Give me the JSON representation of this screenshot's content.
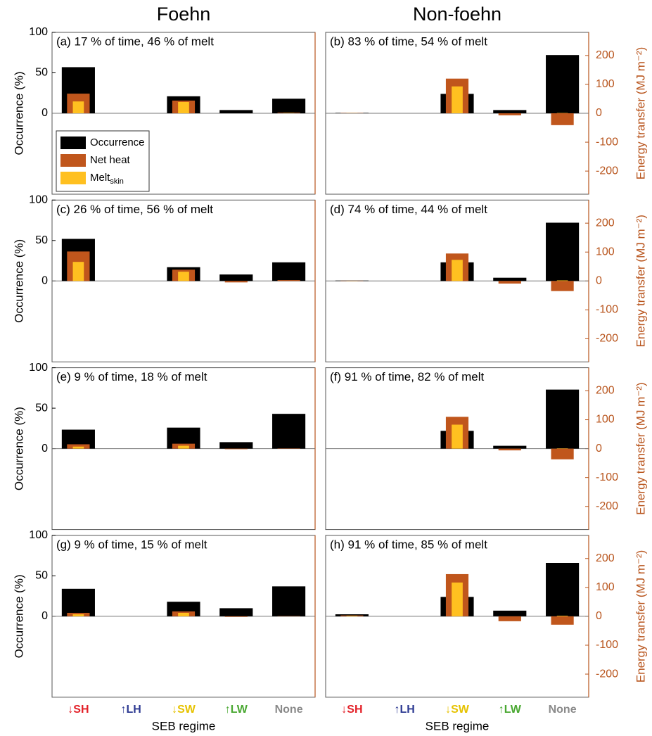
{
  "chart_data": [
    {
      "type": "bar",
      "title": "Foehn",
      "annotation": "(a) 17 % of time, 46 % of melt",
      "categories": [
        null,
        null,
        null,
        null,
        null
      ],
      "ylabel": "Occurrence (%)",
      "ylim": [
        -100,
        100
      ],
      "yticks": [
        0,
        50,
        100
      ],
      "y2lim": [
        -280,
        280
      ],
      "legend": "lower left",
      "series": [
        {
          "name": "Occurrence",
          "color": "#000000",
          "values": [
            57,
            0,
            21,
            4,
            18
          ]
        },
        {
          "name": "Net heat",
          "color": "#c0561c",
          "axis": "y2",
          "values": [
            68,
            0,
            44,
            0,
            2
          ]
        },
        {
          "name": "Melt",
          "name_subscript": "skin",
          "color": "#ffc020",
          "axis": "y2",
          "values": [
            41,
            0,
            39,
            0,
            1
          ]
        }
      ]
    },
    {
      "type": "bar",
      "title": "Non-foehn",
      "annotation": "(b) 83 % of time, 54 % of melt",
      "categories": [
        null,
        null,
        null,
        null,
        null
      ],
      "y2label": "Energy transfer (MJ m⁻²)",
      "ylim": [
        -100,
        100
      ],
      "y2lim": [
        -280,
        280
      ],
      "y2ticks": [
        -200,
        -100,
        0,
        100,
        200
      ],
      "series": [
        {
          "name": "Occurrence",
          "color": "#000000",
          "values": [
            0.5,
            0,
            24,
            4,
            72
          ]
        },
        {
          "name": "Net heat",
          "color": "#c0561c",
          "axis": "y2",
          "values": [
            1,
            0,
            120,
            -7,
            -41
          ]
        },
        {
          "name": "Melt",
          "color": "#ffc020",
          "axis": "y2",
          "values": [
            0.5,
            0,
            93,
            0,
            1
          ]
        }
      ]
    },
    {
      "type": "bar",
      "annotation": "(c) 26 % of time, 56 % of melt",
      "categories": [
        null,
        null,
        null,
        null,
        null
      ],
      "ylabel": "Occurrence (%)",
      "ylim": [
        -100,
        100
      ],
      "yticks": [
        0,
        50,
        100
      ],
      "y2lim": [
        -280,
        280
      ],
      "series": [
        {
          "name": "Occurrence",
          "color": "#000000",
          "values": [
            52,
            0,
            17,
            8,
            23
          ]
        },
        {
          "name": "Net heat",
          "color": "#c0561c",
          "axis": "y2",
          "values": [
            102,
            0,
            39,
            -5,
            3
          ]
        },
        {
          "name": "Melt",
          "color": "#ffc020",
          "axis": "y2",
          "values": [
            66,
            0,
            32,
            0,
            0
          ]
        }
      ]
    },
    {
      "type": "bar",
      "annotation": "(d) 74 % of time, 44 % of melt",
      "categories": [
        null,
        null,
        null,
        null,
        null
      ],
      "y2label": "Energy transfer (MJ m⁻²)",
      "ylim": [
        -100,
        100
      ],
      "y2lim": [
        -280,
        280
      ],
      "y2ticks": [
        -200,
        -100,
        0,
        100,
        200
      ],
      "series": [
        {
          "name": "Occurrence",
          "color": "#000000",
          "values": [
            0.5,
            0,
            23,
            4,
            72
          ]
        },
        {
          "name": "Net heat",
          "color": "#c0561c",
          "axis": "y2",
          "values": [
            1,
            0,
            95,
            -9,
            -35
          ]
        },
        {
          "name": "Melt",
          "color": "#ffc020",
          "axis": "y2",
          "values": [
            0.5,
            0,
            73,
            0,
            2
          ]
        }
      ]
    },
    {
      "type": "bar",
      "annotation": "(e) 9 % of time, 18 % of melt",
      "categories": [
        null,
        null,
        null,
        null,
        null
      ],
      "ylabel": "Occurrence (%)",
      "ylim": [
        -100,
        100
      ],
      "yticks": [
        0,
        50,
        100
      ],
      "y2lim": [
        -280,
        280
      ],
      "series": [
        {
          "name": "Occurrence",
          "color": "#000000",
          "values": [
            23.5,
            0,
            26,
            8,
            43
          ]
        },
        {
          "name": "Net heat",
          "color": "#c0561c",
          "axis": "y2",
          "values": [
            15,
            0,
            17,
            -2,
            1
          ]
        },
        {
          "name": "Melt",
          "color": "#ffc020",
          "axis": "y2",
          "values": [
            7,
            0,
            10,
            0,
            0
          ]
        }
      ]
    },
    {
      "type": "bar",
      "annotation": "(f) 91 % of time, 82 % of melt",
      "categories": [
        null,
        null,
        null,
        null,
        null
      ],
      "y2label": "Energy transfer (MJ m⁻²)",
      "ylim": [
        -100,
        100
      ],
      "y2lim": [
        -280,
        280
      ],
      "y2ticks": [
        -200,
        -100,
        0,
        100,
        200
      ],
      "series": [
        {
          "name": "Occurrence",
          "color": "#000000",
          "values": [
            0,
            0,
            22,
            3.5,
            73
          ]
        },
        {
          "name": "Net heat",
          "color": "#c0561c",
          "axis": "y2",
          "values": [
            0,
            0,
            110,
            -6,
            -37
          ]
        },
        {
          "name": "Melt",
          "color": "#ffc020",
          "axis": "y2",
          "values": [
            0,
            0,
            83,
            0,
            1
          ]
        }
      ]
    },
    {
      "type": "bar",
      "annotation": "(g) 9 % of time, 15 % of melt",
      "categories": [
        "↓SH",
        "↑LH",
        "↓SW",
        "↑LW",
        "None"
      ],
      "category_colors": [
        "#e32028",
        "#2e3b93",
        "#e6c200",
        "#4aa832",
        "#8a8a8a"
      ],
      "xlabel": "SEB regime",
      "ylabel": "Occurrence (%)",
      "ylim": [
        -100,
        100
      ],
      "yticks": [
        0,
        50,
        100
      ],
      "y2lim": [
        -280,
        280
      ],
      "series": [
        {
          "name": "Occurrence",
          "color": "#000000",
          "values": [
            34,
            0,
            18,
            10,
            37
          ]
        },
        {
          "name": "Net heat",
          "color": "#c0561c",
          "axis": "y2",
          "values": [
            12,
            0,
            17,
            -2,
            1
          ]
        },
        {
          "name": "Melt",
          "color": "#ffc020",
          "axis": "y2",
          "values": [
            7,
            0,
            12,
            0,
            0
          ]
        }
      ]
    },
    {
      "type": "bar",
      "annotation": "(h) 91 % of time, 85 % of melt",
      "categories": [
        "↓SH",
        "↑LH",
        "↓SW",
        "↑LW",
        "None"
      ],
      "category_colors": [
        "#e32028",
        "#2e3b93",
        "#e6c200",
        "#4aa832",
        "#8a8a8a"
      ],
      "xlabel": "SEB regime",
      "y2label": "Energy transfer (MJ m⁻²)",
      "ylim": [
        -100,
        100
      ],
      "y2lim": [
        -280,
        280
      ],
      "y2ticks": [
        -200,
        -100,
        0,
        100,
        200
      ],
      "series": [
        {
          "name": "Occurrence",
          "color": "#000000",
          "values": [
            2.5,
            0,
            24,
            7,
            66
          ]
        },
        {
          "name": "Net heat",
          "color": "#c0561c",
          "axis": "y2",
          "values": [
            3,
            0,
            146,
            -17,
            -29
          ]
        },
        {
          "name": "Melt",
          "color": "#ffc020",
          "axis": "y2",
          "values": [
            2,
            0,
            117,
            0,
            2
          ]
        }
      ]
    }
  ]
}
